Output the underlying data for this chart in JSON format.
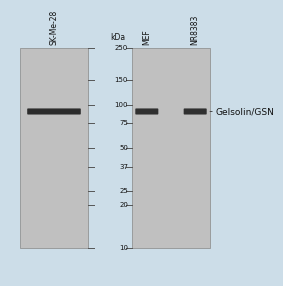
{
  "figure_bg": "#ccdde8",
  "panel_bg": "#c0c0c0",
  "lane_labels": [
    "SK-Me-28",
    "MEF",
    "NR8383"
  ],
  "kda_label": "kDa",
  "marker_values": [
    250,
    150,
    100,
    75,
    50,
    37,
    25,
    20,
    10
  ],
  "band_annotation": "Gelsolin/GSN",
  "band_kda": 90,
  "band_color": "#1a1a1a",
  "border_color": "#888888",
  "lane_label_color": "#111111",
  "marker_text_color": "#111111",
  "annotation_color": "#111111",
  "font_size_label": 5.5,
  "font_size_marker": 5.0,
  "font_size_annotation": 6.5
}
